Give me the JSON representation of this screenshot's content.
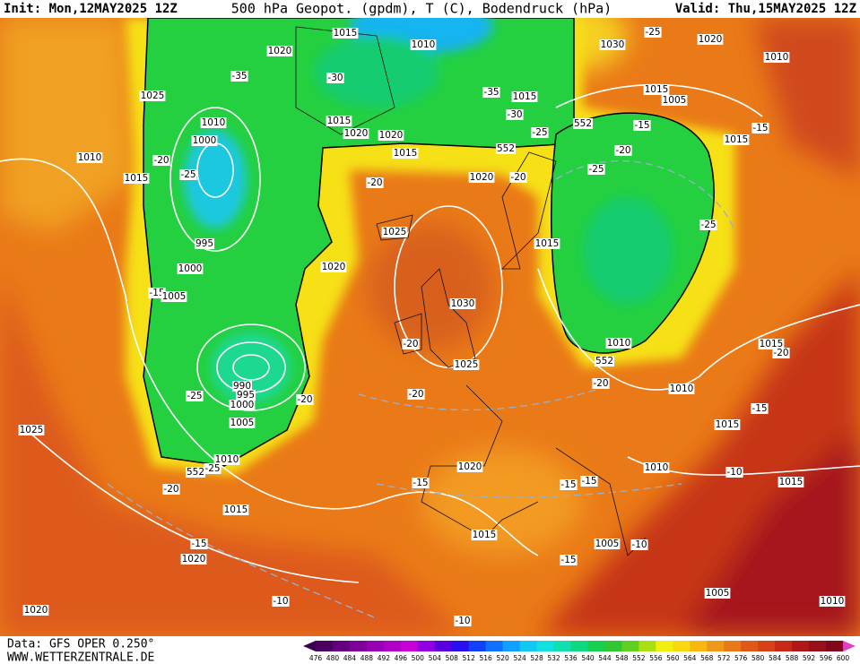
{
  "header": {
    "init": "Init: Mon,12MAY2025 12Z",
    "title": "500 hPa Geopot. (gpdm), T (C), Bodendruck (hPa)",
    "valid": "Valid: Thu,15MAY2025 12Z"
  },
  "map": {
    "labels": [
      1015,
      1010,
      1020,
      1030,
      -25,
      1020,
      1010,
      -35,
      -30,
      1025,
      -35,
      1015,
      1015,
      1005,
      -30,
      1010,
      1000,
      1015,
      1020,
      1020,
      -25,
      552,
      -15,
      -15,
      1015,
      1010,
      -20,
      1015,
      552,
      -20,
      -25,
      1015,
      -25,
      -20,
      1020,
      -20,
      -25,
      1025,
      995,
      1015,
      1000,
      1020,
      -15,
      1005,
      1030,
      -20,
      1010,
      1015,
      -20,
      552,
      1025,
      990,
      995,
      -25,
      1000,
      -20,
      -20,
      -20,
      1010,
      -15,
      1005,
      1015,
      1025,
      1010,
      552,
      -25,
      1020,
      1010,
      -10,
      -15,
      -15,
      -15,
      1015,
      -20,
      1015,
      1015,
      -15,
      1005,
      -10,
      1020,
      -15,
      1005,
      -10,
      1010,
      1020,
      -10
    ]
  },
  "footer": {
    "source": "Data: GFS OPER 0.250°",
    "site": "WWW.WETTERZENTRALE.DE"
  },
  "colorbar": {
    "ticks": [
      476,
      480,
      484,
      488,
      492,
      496,
      500,
      504,
      508,
      512,
      516,
      520,
      524,
      528,
      532,
      536,
      540,
      544,
      548,
      552,
      556,
      560,
      564,
      568,
      572,
      576,
      580,
      584,
      588,
      592,
      596,
      600
    ]
  }
}
